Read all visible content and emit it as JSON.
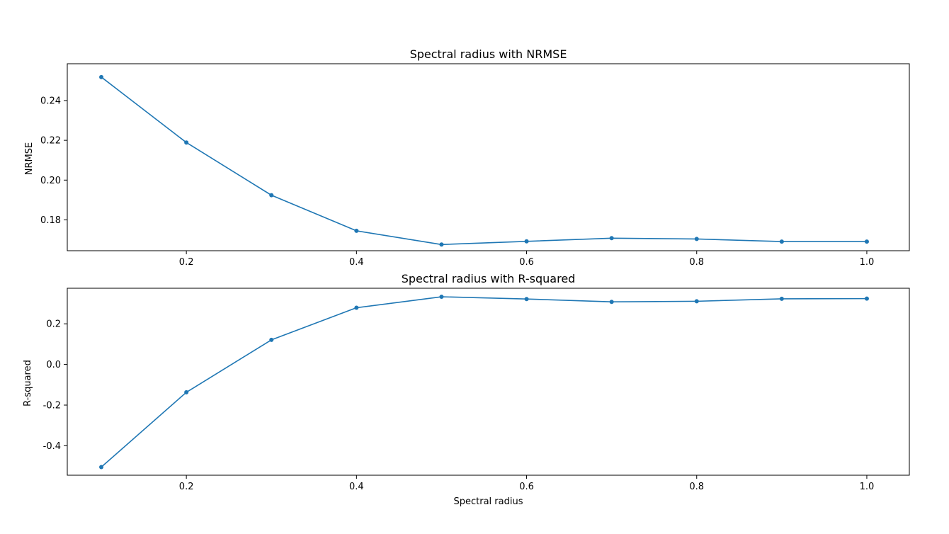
{
  "chart_data": [
    {
      "type": "line",
      "title": "Spectral radius with NRMSE",
      "xlabel": "",
      "ylabel": "NRMSE",
      "xlim": [
        0.06,
        1.05
      ],
      "ylim": [
        0.1645,
        0.2585
      ],
      "xticks": [
        "0.2",
        "0.4",
        "0.6",
        "0.8",
        "1.0"
      ],
      "yticks": [
        "0.18",
        "0.20",
        "0.22",
        "0.24"
      ],
      "grid": false,
      "series": [
        {
          "color": "#1f77b4",
          "marker": "dot",
          "x": [
            0.1,
            0.2,
            0.3,
            0.4,
            0.5,
            0.6,
            0.7,
            0.8,
            0.9,
            1.0
          ],
          "y": [
            0.2518,
            0.2189,
            0.1924,
            0.1745,
            0.1676,
            0.1692,
            0.1708,
            0.1704,
            0.1691,
            0.1691
          ]
        }
      ]
    },
    {
      "type": "line",
      "title": "Spectral radius with R-squared",
      "xlabel": "Spectral radius",
      "ylabel": "R-squared",
      "xlim": [
        0.06,
        1.05
      ],
      "ylim": [
        -0.545,
        0.375
      ],
      "xticks": [
        "0.2",
        "0.4",
        "0.6",
        "0.8",
        "1.0"
      ],
      "yticks": [
        "-0.4",
        "-0.2",
        "0.0",
        "0.2"
      ],
      "grid": false,
      "series": [
        {
          "color": "#1f77b4",
          "marker": "dot",
          "x": [
            0.1,
            0.2,
            0.3,
            0.4,
            0.5,
            0.6,
            0.7,
            0.8,
            0.9,
            1.0
          ],
          "y": [
            -0.505,
            -0.137,
            0.121,
            0.279,
            0.333,
            0.322,
            0.308,
            0.311,
            0.323,
            0.324
          ]
        }
      ]
    }
  ]
}
